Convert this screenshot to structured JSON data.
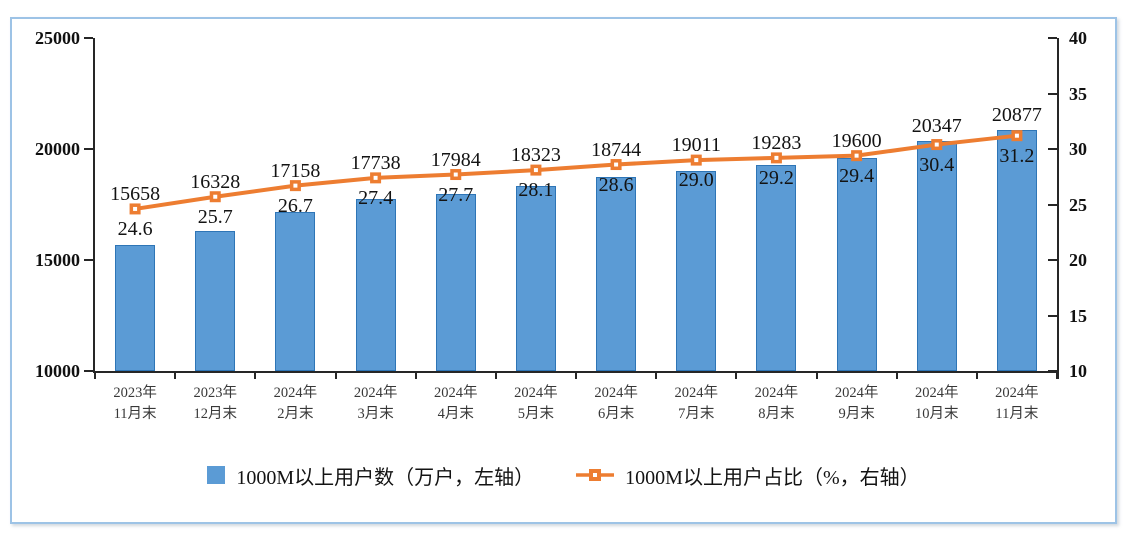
{
  "chart_data": {
    "type": "combo-bar-line",
    "grid": false,
    "legend_position": "bottom",
    "categories": [
      [
        "2023年",
        "11月末"
      ],
      [
        "2023年",
        "12月末"
      ],
      [
        "2024年",
        "2月末"
      ],
      [
        "2024年",
        "3月末"
      ],
      [
        "2024年",
        "4月末"
      ],
      [
        "2024年",
        "5月末"
      ],
      [
        "2024年",
        "6月末"
      ],
      [
        "2024年",
        "7月末"
      ],
      [
        "2024年",
        "8月末"
      ],
      [
        "2024年",
        "9月末"
      ],
      [
        "2024年",
        "10月末"
      ],
      [
        "2024年",
        "11月末"
      ]
    ],
    "series": [
      {
        "name": "1000M以上用户数（万户，左轴）",
        "type": "bar",
        "axis": "left",
        "color": "#5B9BD5",
        "border_color": "#2E75B6",
        "values": [
          15658,
          16328,
          17158,
          17738,
          17984,
          18323,
          18744,
          19011,
          19283,
          19600,
          20347,
          20877
        ],
        "labels": [
          "15658",
          "16328",
          "17158",
          "17738",
          "17984",
          "18323",
          "18744",
          "19011",
          "19283",
          "19600",
          "20347",
          "20877"
        ]
      },
      {
        "name": "1000M以上用户占比（%，右轴）",
        "type": "line",
        "axis": "right",
        "color": "#ED7D31",
        "marker": "square",
        "values": [
          24.6,
          25.7,
          26.7,
          27.4,
          27.7,
          28.1,
          28.6,
          29.0,
          29.2,
          29.4,
          30.4,
          31.2
        ],
        "labels": [
          "24.6",
          "25.7",
          "26.7",
          "27.4",
          "27.7",
          "28.1",
          "28.6",
          "29.0",
          "29.2",
          "29.4",
          "30.4",
          "31.2"
        ]
      }
    ],
    "left_axis": {
      "min": 10000,
      "max": 25000,
      "step": 5000,
      "tick_labels": [
        "25000",
        "20000",
        "15000",
        "10000"
      ]
    },
    "right_axis": {
      "min": 10,
      "max": 40,
      "step": 5,
      "tick_labels": [
        "40",
        "35",
        "30",
        "25",
        "20",
        "15",
        "10"
      ]
    }
  },
  "colors": {
    "frame_border": "#9DC3E6",
    "axis_line": "#262626",
    "bar_fill": "#5B9BD5",
    "bar_border": "#2E75B6",
    "line": "#ED7D31"
  }
}
